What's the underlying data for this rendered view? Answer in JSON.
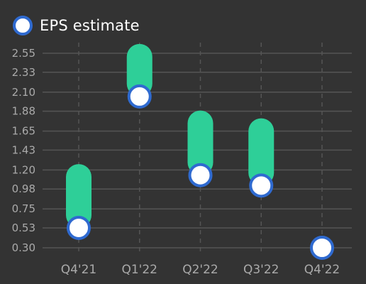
{
  "legend": {
    "label": "EPS estimate"
  },
  "colors": {
    "background": "#333333",
    "grid": "#555555",
    "bar": "#2ecf98",
    "marker_fill": "#ffffff",
    "marker_stroke": "#2f6ad0",
    "tick_text": "#aaaaaa",
    "legend_text": "#ffffff"
  },
  "chart_data": {
    "type": "bar",
    "subtype": "range-bar-with-markers",
    "title": "",
    "xlabel": "",
    "ylabel": "",
    "categories": [
      "Q4'21",
      "Q1'22",
      "Q2'22",
      "Q3'22",
      "Q4'22"
    ],
    "y_ticks": [
      "0.30",
      "0.53",
      "0.75",
      "0.98",
      "1.20",
      "1.43",
      "1.65",
      "1.88",
      "2.10",
      "2.33",
      "2.55"
    ],
    "ylim": [
      0.3,
      2.55
    ],
    "grid": {
      "horizontal": true,
      "vertical": true,
      "vertical_style": "dashed"
    },
    "legend_position": "top-left",
    "series": [
      {
        "name": "",
        "type": "range",
        "low": [
          0.53,
          2.05,
          1.14,
          1.02,
          null
        ],
        "high": [
          1.12,
          2.51,
          1.74,
          1.65,
          null
        ]
      },
      {
        "name": "EPS estimate",
        "type": "marker",
        "values": [
          0.53,
          2.05,
          1.14,
          1.02,
          0.3
        ]
      }
    ]
  }
}
